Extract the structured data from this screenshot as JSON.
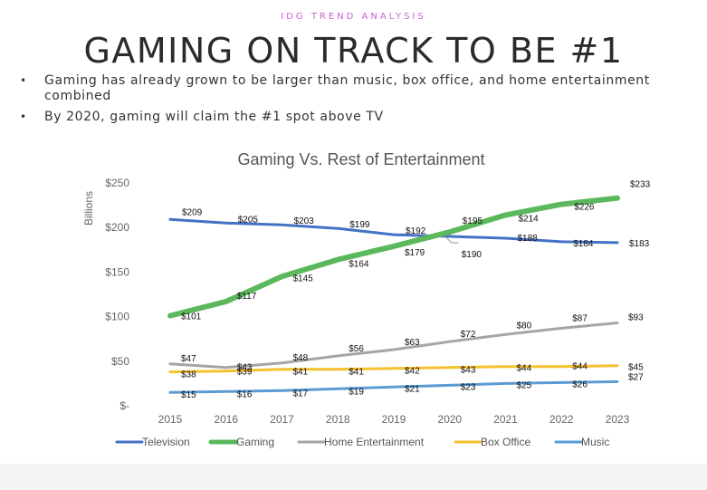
{
  "header": {
    "kicker": "IDG TREND ANALYSIS",
    "title": "GAMING ON TRACK TO BE #1"
  },
  "bullets": [
    "Gaming has already grown to be larger than music, box office, and home entertainment combined",
    "By 2020, gaming will claim the #1 spot above TV"
  ],
  "bullet_glyph": "•",
  "chart_data": {
    "type": "line",
    "title": "Gaming Vs. Rest of Entertainment",
    "xlabel": "",
    "ylabel": "Billions",
    "categories": [
      "2015",
      "2016",
      "2017",
      "2018",
      "2019",
      "2020",
      "2021",
      "2022",
      "2023"
    ],
    "ylim": [
      0,
      250
    ],
    "yticks": [
      {
        "value": 0,
        "label": "$-"
      },
      {
        "value": 50,
        "label": "$50"
      },
      {
        "value": 100,
        "label": "$100"
      },
      {
        "value": 150,
        "label": "$150"
      },
      {
        "value": 200,
        "label": "$200"
      },
      {
        "value": 250,
        "label": "$250"
      }
    ],
    "grid": false,
    "legend": "bottom",
    "series": [
      {
        "name": "Television",
        "color": "#4472c4",
        "width": 3,
        "values": [
          209,
          205,
          203,
          199,
          192,
          190,
          188,
          184,
          183
        ],
        "labels": [
          "$209",
          "$205",
          "$203",
          "$199",
          "$192",
          "$190",
          "$188",
          "$184",
          "$183"
        ]
      },
      {
        "name": "Gaming",
        "color": "#5cb85c",
        "width": 6,
        "values": [
          101,
          117,
          145,
          164,
          179,
          195,
          214,
          226,
          233
        ],
        "labels": [
          "$101",
          "$117",
          "$145",
          "$164",
          "$179",
          "$195",
          "$214",
          "$226",
          "$233"
        ]
      },
      {
        "name": "Home Entertainment",
        "color": "#a5a5a5",
        "width": 3,
        "values": [
          47,
          43,
          48,
          56,
          63,
          72,
          80,
          87,
          93
        ],
        "labels": [
          "$47",
          "$43",
          "$48",
          "$56",
          "$63",
          "$72",
          "$80",
          "$87",
          "$93"
        ]
      },
      {
        "name": "Box Office",
        "color": "#f5c12e",
        "width": 3,
        "values": [
          38,
          39,
          41,
          41,
          42,
          43,
          44,
          44,
          45
        ],
        "labels": [
          "$38",
          "$39",
          "$41",
          "$41",
          "$42",
          "$43",
          "$44",
          "$44",
          "$45"
        ]
      },
      {
        "name": "Music",
        "color": "#5b9bd5",
        "width": 3,
        "values": [
          15,
          16,
          17,
          19,
          21,
          23,
          25,
          26,
          27
        ],
        "labels": [
          "$15",
          "$16",
          "$17",
          "$19",
          "$21",
          "$23",
          "$25",
          "$26",
          "$27"
        ]
      }
    ]
  }
}
